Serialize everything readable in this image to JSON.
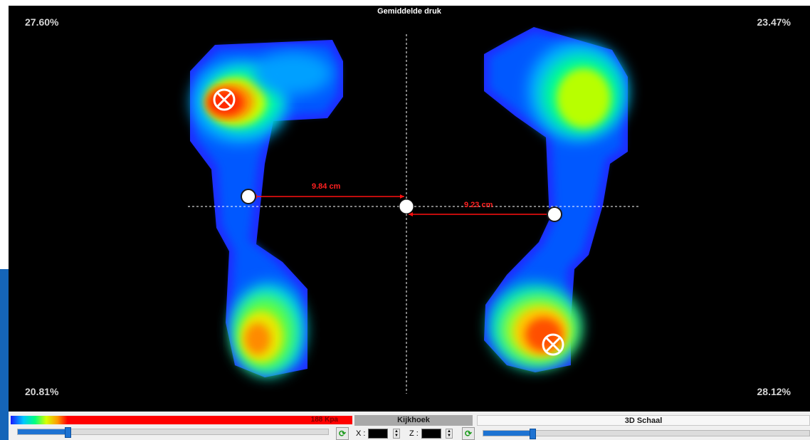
{
  "view": {
    "title": "Gemiddelde druk",
    "quadrants": {
      "top_left": "27.60%",
      "top_right": "23.47%",
      "bottom_left": "20.81%",
      "bottom_right": "28.12%"
    },
    "distances": {
      "left": "9.84 cm",
      "right": "9.23 cm"
    }
  },
  "controls": {
    "legend": {
      "max_label": "188 Kpa",
      "colors": [
        "#1a1aff",
        "#00c8ff",
        "#00ff80",
        "#d8ff00",
        "#ff9900",
        "#ff0000"
      ]
    },
    "pressure_slider_level": 0.16,
    "kijkhoek": {
      "header": "Kijkhoek",
      "x_label": "X :",
      "z_label": "Z :",
      "x_value": "",
      "z_value": ""
    },
    "schaal": {
      "header": "3D Schaal",
      "slider_level": 0.15
    },
    "refresh_icon": "refresh-arrow-icon"
  }
}
